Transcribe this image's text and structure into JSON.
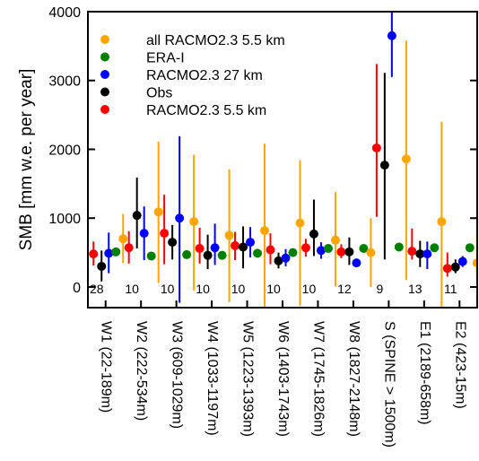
{
  "chart_data": {
    "type": "scatter",
    "ylabel": "SMB [mm w.e. per year]",
    "ylim": [
      -300,
      4000
    ],
    "yticks": [
      "0",
      "1000",
      "2000",
      "3000",
      "4000"
    ],
    "ytick_values": [
      0,
      1000,
      2000,
      3000,
      4000
    ],
    "grid": false,
    "legend_position": "top-left",
    "categories": [
      "W1 (22-189m)",
      "W2 (222-534m)",
      "W3 (609-1029m)",
      "W4 (1033-1197m)",
      "W5 (1223-1393m)",
      "W6 (1403-1743m)",
      "W7 (1745-1826m)",
      "W8 (1827-2148m)",
      "S (SPINE > 1500m)",
      "E1 (2189-658m)",
      "E2 (423-15m)"
    ],
    "counts": [
      "28",
      "10",
      "10",
      "10",
      "10",
      "10",
      "10",
      "12",
      "9",
      "13",
      "11"
    ],
    "series": [
      {
        "name": "RACMO2.3 5.5 km",
        "color": "#ff0000",
        "values": [
          480,
          570,
          780,
          560,
          600,
          540,
          570,
          510,
          2020,
          520,
          270
        ],
        "err_low": [
          310,
          340,
          330,
          340,
          390,
          330,
          440,
          420,
          1020,
          400,
          150
        ],
        "err_high": [
          660,
          810,
          1340,
          860,
          800,
          780,
          700,
          620,
          3240,
          850,
          500
        ]
      },
      {
        "name": "Obs",
        "color": "#000000",
        "values": [
          300,
          1040,
          650,
          460,
          580,
          380,
          770,
          510,
          1770,
          480,
          290
        ],
        "err_low": [
          80,
          560,
          400,
          260,
          270,
          270,
          450,
          320,
          400,
          290,
          200
        ],
        "err_high": [
          530,
          1590,
          900,
          760,
          880,
          500,
          1270,
          720,
          3110,
          670,
          400
        ]
      },
      {
        "name": "RACMO2.3 27 km",
        "color": "#0000ff",
        "values": [
          490,
          780,
          1000,
          570,
          650,
          420,
          530,
          350,
          3650,
          480,
          370
        ],
        "err_low": [
          200,
          390,
          -230,
          320,
          430,
          300,
          410,
          300,
          3050,
          260,
          290
        ],
        "err_high": [
          790,
          1170,
          2190,
          920,
          870,
          550,
          650,
          410,
          4000,
          660,
          450
        ]
      },
      {
        "name": "ERA-I",
        "color": "#008000",
        "values": [
          510,
          450,
          470,
          460,
          490,
          500,
          560,
          560,
          580,
          570,
          570
        ],
        "err_low": [
          510,
          450,
          470,
          460,
          490,
          500,
          560,
          560,
          580,
          570,
          570
        ],
        "err_high": [
          510,
          450,
          470,
          460,
          490,
          500,
          560,
          560,
          580,
          570,
          570
        ]
      },
      {
        "name": "all RACMO2.3 5.5 km",
        "color": "#ffa500",
        "values": [
          700,
          1090,
          950,
          750,
          820,
          930,
          680,
          500,
          1860,
          950,
          350
        ],
        "err_low": [
          350,
          60,
          -50,
          -220,
          -300,
          -270,
          10,
          0,
          100,
          -300,
          140
        ],
        "err_high": [
          1060,
          2110,
          1920,
          1710,
          2080,
          1840,
          1380,
          1000,
          3580,
          2400,
          760
        ]
      }
    ]
  },
  "legend": [
    {
      "label": "all RACMO2.3 5.5 km",
      "color": "#ffa500"
    },
    {
      "label": "ERA-I",
      "color": "#008000"
    },
    {
      "label": "RACMO2.3 27 km",
      "color": "#0000ff"
    },
    {
      "label": "Obs",
      "color": "#000000"
    },
    {
      "label": "RACMO2.3 5.5 km",
      "color": "#ff0000"
    }
  ]
}
